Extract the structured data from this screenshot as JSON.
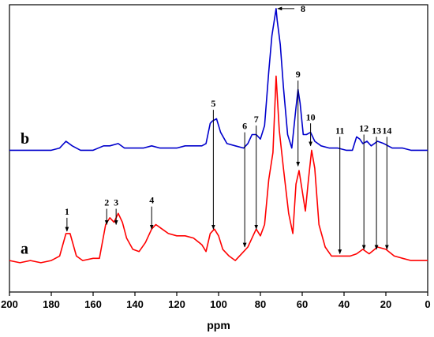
{
  "chart_data": {
    "type": "line",
    "xlabel": "ppm",
    "ylabel": "",
    "xlim": [
      200,
      0
    ],
    "x_reversed": true,
    "x_ticks": [
      200,
      180,
      160,
      140,
      120,
      100,
      80,
      60,
      40,
      20,
      0
    ],
    "grid": false,
    "series": [
      {
        "name": "a",
        "color": "#ff0000",
        "points": [
          [
            200,
            0.14
          ],
          [
            195,
            0.13
          ],
          [
            190,
            0.14
          ],
          [
            185,
            0.13
          ],
          [
            180,
            0.14
          ],
          [
            176,
            0.16
          ],
          [
            173,
            0.26
          ],
          [
            171,
            0.26
          ],
          [
            168,
            0.16
          ],
          [
            165,
            0.14
          ],
          [
            160,
            0.15
          ],
          [
            157,
            0.15
          ],
          [
            154,
            0.3
          ],
          [
            152,
            0.33
          ],
          [
            150,
            0.31
          ],
          [
            148,
            0.35
          ],
          [
            146,
            0.31
          ],
          [
            144,
            0.24
          ],
          [
            141,
            0.19
          ],
          [
            138,
            0.18
          ],
          [
            135,
            0.22
          ],
          [
            132,
            0.28
          ],
          [
            130,
            0.3
          ],
          [
            127,
            0.28
          ],
          [
            124,
            0.26
          ],
          [
            120,
            0.25
          ],
          [
            116,
            0.25
          ],
          [
            112,
            0.24
          ],
          [
            108,
            0.21
          ],
          [
            106,
            0.18
          ],
          [
            104,
            0.26
          ],
          [
            102,
            0.28
          ],
          [
            100,
            0.25
          ],
          [
            98,
            0.19
          ],
          [
            95,
            0.16
          ],
          [
            92,
            0.14
          ],
          [
            89,
            0.17
          ],
          [
            86,
            0.2
          ],
          [
            84,
            0.24
          ],
          [
            82,
            0.28
          ],
          [
            80,
            0.25
          ],
          [
            78,
            0.3
          ],
          [
            76,
            0.5
          ],
          [
            74,
            0.62
          ],
          [
            72.5,
            0.96
          ],
          [
            71,
            0.72
          ],
          [
            69,
            0.55
          ],
          [
            66.5,
            0.35
          ],
          [
            64.5,
            0.26
          ],
          [
            63,
            0.48
          ],
          [
            61.5,
            0.54
          ],
          [
            60,
            0.45
          ],
          [
            58.5,
            0.36
          ],
          [
            57,
            0.5
          ],
          [
            55.5,
            0.63
          ],
          [
            54,
            0.55
          ],
          [
            52,
            0.3
          ],
          [
            49,
            0.2
          ],
          [
            46,
            0.16
          ],
          [
            43,
            0.16
          ],
          [
            40,
            0.16
          ],
          [
            37,
            0.16
          ],
          [
            34,
            0.17
          ],
          [
            31,
            0.19
          ],
          [
            28,
            0.17
          ],
          [
            24,
            0.2
          ],
          [
            20,
            0.19
          ],
          [
            16,
            0.16
          ],
          [
            12,
            0.15
          ],
          [
            8,
            0.14
          ],
          [
            4,
            0.14
          ],
          [
            0,
            0.14
          ]
        ]
      },
      {
        "name": "b",
        "color": "#0000cc",
        "points": [
          [
            200,
            0.63
          ],
          [
            195,
            0.63
          ],
          [
            190,
            0.63
          ],
          [
            185,
            0.63
          ],
          [
            180,
            0.63
          ],
          [
            176,
            0.64
          ],
          [
            173,
            0.67
          ],
          [
            170,
            0.65
          ],
          [
            166,
            0.63
          ],
          [
            160,
            0.63
          ],
          [
            155,
            0.65
          ],
          [
            152,
            0.65
          ],
          [
            148,
            0.66
          ],
          [
            145,
            0.64
          ],
          [
            140,
            0.64
          ],
          [
            136,
            0.64
          ],
          [
            132,
            0.65
          ],
          [
            128,
            0.64
          ],
          [
            124,
            0.64
          ],
          [
            120,
            0.64
          ],
          [
            116,
            0.65
          ],
          [
            112,
            0.65
          ],
          [
            108,
            0.65
          ],
          [
            106,
            0.66
          ],
          [
            104,
            0.75
          ],
          [
            103,
            0.76
          ],
          [
            101,
            0.77
          ],
          [
            99,
            0.71
          ],
          [
            96,
            0.66
          ],
          [
            92,
            0.65
          ],
          [
            88,
            0.64
          ],
          [
            86,
            0.66
          ],
          [
            84,
            0.7
          ],
          [
            82,
            0.7
          ],
          [
            80,
            0.68
          ],
          [
            78,
            0.74
          ],
          [
            76,
            0.98
          ],
          [
            74.5,
            1.14
          ],
          [
            73,
            1.23
          ],
          [
            72.5,
            1.26
          ],
          [
            72,
            1.21
          ],
          [
            70.5,
            1.1
          ],
          [
            69,
            0.91
          ],
          [
            67,
            0.7
          ],
          [
            65,
            0.64
          ],
          [
            63,
            0.82
          ],
          [
            62,
            0.9
          ],
          [
            61,
            0.84
          ],
          [
            59.5,
            0.7
          ],
          [
            58,
            0.7
          ],
          [
            56,
            0.71
          ],
          [
            54,
            0.67
          ],
          [
            51,
            0.65
          ],
          [
            47,
            0.64
          ],
          [
            43,
            0.64
          ],
          [
            39,
            0.63
          ],
          [
            36,
            0.63
          ],
          [
            34,
            0.69
          ],
          [
            32.5,
            0.68
          ],
          [
            31,
            0.66
          ],
          [
            29,
            0.67
          ],
          [
            27,
            0.65
          ],
          [
            24,
            0.67
          ],
          [
            21,
            0.66
          ],
          [
            17,
            0.64
          ],
          [
            12,
            0.64
          ],
          [
            8,
            0.63
          ],
          [
            4,
            0.63
          ],
          [
            0,
            0.63
          ]
        ]
      }
    ],
    "series_tags": [
      {
        "text": "a",
        "ppm": 200,
        "y": 0.17
      },
      {
        "text": "b",
        "ppm": 200,
        "y": 0.66
      }
    ],
    "annotations": [
      {
        "label": "1",
        "ppm": 172.5,
        "top": 0.33,
        "bottom": 0.27
      },
      {
        "label": "2",
        "ppm": 153.5,
        "top": 0.37,
        "bottom": 0.3
      },
      {
        "label": "3",
        "ppm": 149,
        "top": 0.37,
        "bottom": 0.3
      },
      {
        "label": "4",
        "ppm": 132,
        "top": 0.38,
        "bottom": 0.28
      },
      {
        "label": "5",
        "ppm": 102.5,
        "top": 0.81,
        "bottom": 0.28
      },
      {
        "label": "6",
        "ppm": 87.5,
        "top": 0.71,
        "bottom": 0.2
      },
      {
        "label": "7",
        "ppm": 82,
        "top": 0.74,
        "bottom": 0.28
      },
      {
        "label": "8",
        "ppm": 72.5,
        "top": 1.26,
        "bottom": 1.26,
        "horizontal": true,
        "label_ppm": 63
      },
      {
        "label": "9",
        "ppm": 62,
        "top": 0.94,
        "bottom": 0.56
      },
      {
        "label": "10",
        "ppm": 56,
        "top": 0.75,
        "bottom": 0.65
      },
      {
        "label": "11",
        "ppm": 42,
        "top": 0.69,
        "bottom": 0.17
      },
      {
        "label": "12",
        "ppm": 30.5,
        "top": 0.7,
        "bottom": 0.19
      },
      {
        "label": "13",
        "ppm": 24.5,
        "top": 0.69,
        "bottom": 0.19
      },
      {
        "label": "14",
        "ppm": 19.5,
        "top": 0.69,
        "bottom": 0.19
      }
    ]
  }
}
